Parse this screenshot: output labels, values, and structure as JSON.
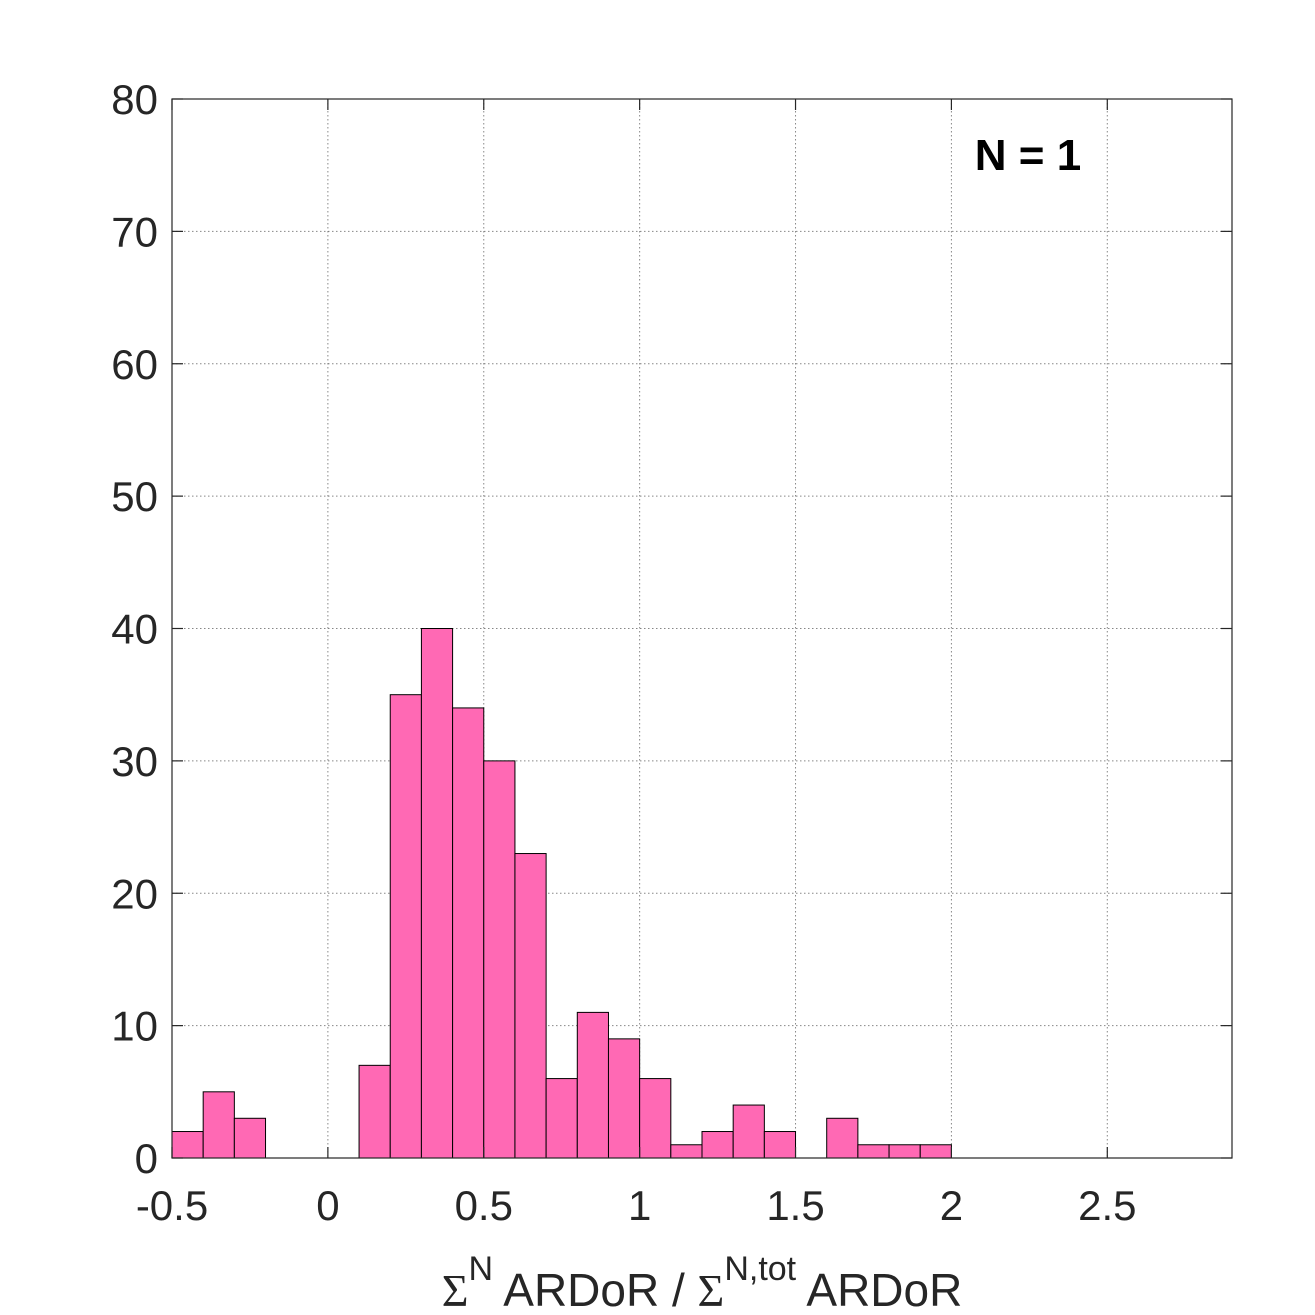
{
  "chart_data": {
    "type": "bar",
    "annotation": "N = 1",
    "xlabel": {
      "sigma1": "Σ",
      "sup1": "N",
      "mid": " ARDoR / ",
      "sigma2": "Σ",
      "sup2": "N,tot",
      "end": " ARDoR"
    },
    "ylabel": "",
    "xlim": [
      -0.5,
      2.9
    ],
    "ylim": [
      0,
      80
    ],
    "grid": true,
    "xticks": [
      -0.5,
      0,
      0.5,
      1,
      1.5,
      2,
      2.5
    ],
    "xtick_labels": [
      "-0.5",
      "0",
      "0.5",
      "1",
      "1.5",
      "2",
      "2.5"
    ],
    "yticks": [
      0,
      10,
      20,
      30,
      40,
      50,
      60,
      70,
      80
    ],
    "ytick_labels": [
      "0",
      "10",
      "20",
      "30",
      "40",
      "50",
      "60",
      "70",
      "80"
    ],
    "bin_width": 0.1,
    "bin_left_edges": [
      -0.5,
      -0.4,
      -0.3,
      -0.2,
      -0.1,
      0.0,
      0.1,
      0.2,
      0.3,
      0.4,
      0.5,
      0.6,
      0.7,
      0.8,
      0.9,
      1.0,
      1.1,
      1.2,
      1.3,
      1.4,
      1.5,
      1.6,
      1.7,
      1.8,
      1.9
    ],
    "values": [
      2,
      5,
      3,
      0,
      0,
      0,
      7,
      35,
      40,
      34,
      30,
      23,
      6,
      11,
      9,
      6,
      1,
      2,
      4,
      2,
      0,
      3,
      1,
      1,
      1
    ],
    "bar_color": "#ff69b4",
    "edge_color": "#000000"
  }
}
